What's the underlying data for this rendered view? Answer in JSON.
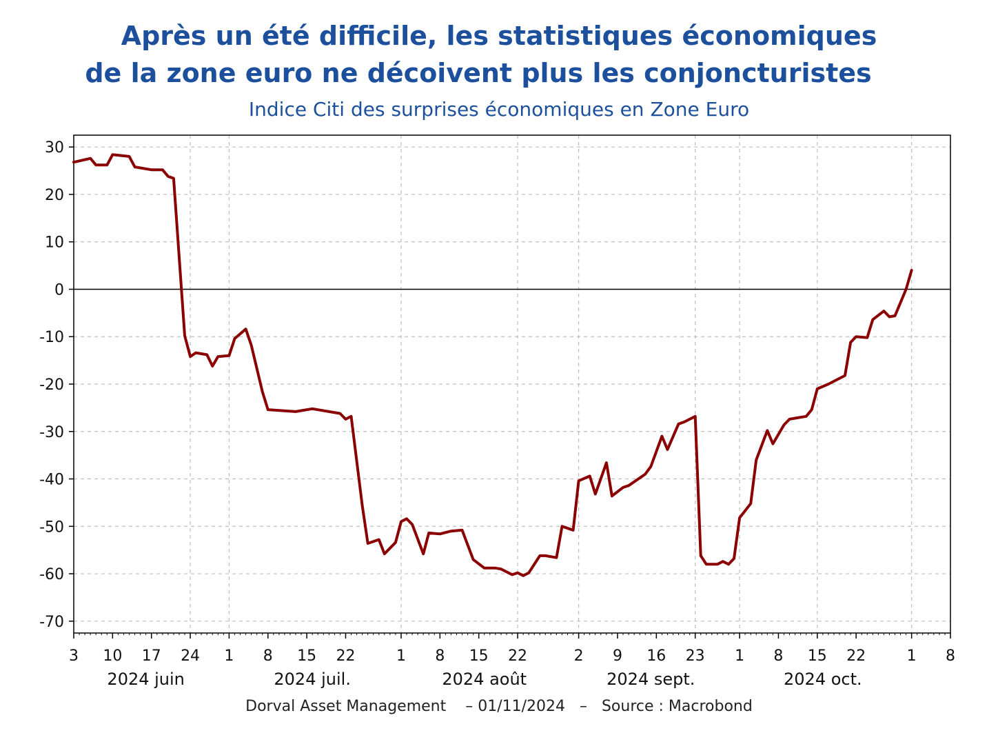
{
  "title_line1": "Après un été difficile, les statistiques économiques",
  "title_line2": "de la zone euro ne décoivent plus les conjoncturistes",
  "subtitle": "Indice Citi des surprises économiques en Zone Euro",
  "footer": "Dorval Asset Management    – 01/11/2024   –   Source : Macrobond",
  "colors": {
    "title": "#1c4f9c",
    "series": "#8b0000",
    "grid": "#bdbdbd"
  },
  "chart_data": {
    "type": "line",
    "title": "Après un été difficile, les statistiques économiques de la zone euro ne décoivent plus les conjoncturistes",
    "subtitle": "Indice Citi des surprises économiques en Zone Euro",
    "xlabel": "",
    "ylabel": "",
    "xlim": [
      "2024-06-03",
      "2024-11-08"
    ],
    "ylim": [
      -72.5,
      32.5
    ],
    "y_ticks": [
      30,
      20,
      10,
      0,
      -10,
      -20,
      -30,
      -40,
      -50,
      -60,
      -70
    ],
    "x_ticks": [
      {
        "date": "2024-06-03",
        "label": "3"
      },
      {
        "date": "2024-06-10",
        "label": "10"
      },
      {
        "date": "2024-06-17",
        "label": "17"
      },
      {
        "date": "2024-06-24",
        "label": "24"
      },
      {
        "date": "2024-07-01",
        "label": "1"
      },
      {
        "date": "2024-07-08",
        "label": "8"
      },
      {
        "date": "2024-07-15",
        "label": "15"
      },
      {
        "date": "2024-07-22",
        "label": "22"
      },
      {
        "date": "2024-08-01",
        "label": "1"
      },
      {
        "date": "2024-08-08",
        "label": "8"
      },
      {
        "date": "2024-08-15",
        "label": "15"
      },
      {
        "date": "2024-08-22",
        "label": "22"
      },
      {
        "date": "2024-09-02",
        "label": "2"
      },
      {
        "date": "2024-09-09",
        "label": "9"
      },
      {
        "date": "2024-09-16",
        "label": "16"
      },
      {
        "date": "2024-09-23",
        "label": "23"
      },
      {
        "date": "2024-10-01",
        "label": "1"
      },
      {
        "date": "2024-10-08",
        "label": "8"
      },
      {
        "date": "2024-10-15",
        "label": "15"
      },
      {
        "date": "2024-10-22",
        "label": "22"
      },
      {
        "date": "2024-11-01",
        "label": "1"
      },
      {
        "date": "2024-11-08",
        "label": "8"
      }
    ],
    "grid_dates": [
      "2024-06-03",
      "2024-06-24",
      "2024-07-01",
      "2024-08-01",
      "2024-08-22",
      "2024-09-02",
      "2024-09-23",
      "2024-10-01",
      "2024-10-15",
      "2024-11-01"
    ],
    "months": [
      {
        "label": "2024 juin",
        "center_date": "2024-06-16"
      },
      {
        "label": "2024 juil.",
        "center_date": "2024-07-16"
      },
      {
        "label": "2024 août",
        "center_date": "2024-08-16"
      },
      {
        "label": "2024 sept.",
        "center_date": "2024-09-15"
      },
      {
        "label": "2024 oct.",
        "center_date": "2024-10-16"
      }
    ],
    "zero_line": true,
    "grid": true,
    "series": [
      {
        "color": "#8b0000",
        "points": [
          [
            "2024-06-03",
            26.8
          ],
          [
            "2024-06-06",
            27.6
          ],
          [
            "2024-06-07",
            26.2
          ],
          [
            "2024-06-09",
            26.2
          ],
          [
            "2024-06-10",
            28.4
          ],
          [
            "2024-06-13",
            28.0
          ],
          [
            "2024-06-14",
            25.8
          ],
          [
            "2024-06-17",
            25.2
          ],
          [
            "2024-06-19",
            25.2
          ],
          [
            "2024-06-20",
            23.8
          ],
          [
            "2024-06-21",
            23.4
          ],
          [
            "2024-06-23",
            -9.8
          ],
          [
            "2024-06-24",
            -14.2
          ],
          [
            "2024-06-25",
            -13.4
          ],
          [
            "2024-06-27",
            -13.8
          ],
          [
            "2024-06-28",
            -16.2
          ],
          [
            "2024-06-29",
            -14.2
          ],
          [
            "2024-07-01",
            -14.0
          ],
          [
            "2024-07-02",
            -10.4
          ],
          [
            "2024-07-04",
            -8.4
          ],
          [
            "2024-07-05",
            -11.8
          ],
          [
            "2024-07-07",
            -21.6
          ],
          [
            "2024-07-08",
            -25.4
          ],
          [
            "2024-07-13",
            -25.8
          ],
          [
            "2024-07-14",
            -25.6
          ],
          [
            "2024-07-16",
            -25.2
          ],
          [
            "2024-07-21",
            -26.2
          ],
          [
            "2024-07-22",
            -27.4
          ],
          [
            "2024-07-23",
            -26.8
          ],
          [
            "2024-07-25",
            -45.6
          ],
          [
            "2024-07-26",
            -53.6
          ],
          [
            "2024-07-28",
            -52.8
          ],
          [
            "2024-07-29",
            -55.8
          ],
          [
            "2024-07-31",
            -53.4
          ],
          [
            "2024-08-01",
            -49.0
          ],
          [
            "2024-08-02",
            -48.4
          ],
          [
            "2024-08-03",
            -49.6
          ],
          [
            "2024-08-05",
            -55.8
          ],
          [
            "2024-08-06",
            -51.4
          ],
          [
            "2024-08-08",
            -51.6
          ],
          [
            "2024-08-10",
            -51.0
          ],
          [
            "2024-08-12",
            -50.8
          ],
          [
            "2024-08-14",
            -57.0
          ],
          [
            "2024-08-16",
            -58.8
          ],
          [
            "2024-08-18",
            -58.8
          ],
          [
            "2024-08-19",
            -59.0
          ],
          [
            "2024-08-21",
            -60.2
          ],
          [
            "2024-08-22",
            -59.8
          ],
          [
            "2024-08-23",
            -60.4
          ],
          [
            "2024-08-24",
            -59.8
          ],
          [
            "2024-08-26",
            -56.2
          ],
          [
            "2024-08-27",
            -56.2
          ],
          [
            "2024-08-29",
            -56.6
          ],
          [
            "2024-08-30",
            -50.0
          ],
          [
            "2024-09-01",
            -50.8
          ],
          [
            "2024-09-02",
            -40.4
          ],
          [
            "2024-09-04",
            -39.4
          ],
          [
            "2024-09-05",
            -43.2
          ],
          [
            "2024-09-07",
            -36.6
          ],
          [
            "2024-09-08",
            -43.6
          ],
          [
            "2024-09-10",
            -41.8
          ],
          [
            "2024-09-11",
            -41.4
          ],
          [
            "2024-09-14",
            -39.0
          ],
          [
            "2024-09-15",
            -37.4
          ],
          [
            "2024-09-17",
            -31.0
          ],
          [
            "2024-09-18",
            -33.8
          ],
          [
            "2024-09-20",
            -28.4
          ],
          [
            "2024-09-21",
            -28.0
          ],
          [
            "2024-09-23",
            -26.8
          ],
          [
            "2024-09-24",
            -56.2
          ],
          [
            "2024-09-25",
            -58.0
          ],
          [
            "2024-09-27",
            -58.0
          ],
          [
            "2024-09-28",
            -57.4
          ],
          [
            "2024-09-29",
            -58.0
          ],
          [
            "2024-09-30",
            -56.8
          ],
          [
            "2024-10-01",
            -48.2
          ],
          [
            "2024-10-03",
            -45.2
          ],
          [
            "2024-10-04",
            -36.0
          ],
          [
            "2024-10-06",
            -29.8
          ],
          [
            "2024-10-07",
            -32.6
          ],
          [
            "2024-10-09",
            -28.6
          ],
          [
            "2024-10-10",
            -27.4
          ],
          [
            "2024-10-12",
            -27.0
          ],
          [
            "2024-10-13",
            -26.8
          ],
          [
            "2024-10-14",
            -25.4
          ],
          [
            "2024-10-15",
            -21.0
          ],
          [
            "2024-10-17",
            -20.0
          ],
          [
            "2024-10-20",
            -18.2
          ],
          [
            "2024-10-21",
            -11.2
          ],
          [
            "2024-10-22",
            -10.0
          ],
          [
            "2024-10-24",
            -10.2
          ],
          [
            "2024-10-25",
            -6.4
          ],
          [
            "2024-10-27",
            -4.6
          ],
          [
            "2024-10-28",
            -5.8
          ],
          [
            "2024-10-29",
            -5.6
          ],
          [
            "2024-10-31",
            0.0
          ],
          [
            "2024-11-01",
            4.0
          ]
        ]
      }
    ]
  }
}
